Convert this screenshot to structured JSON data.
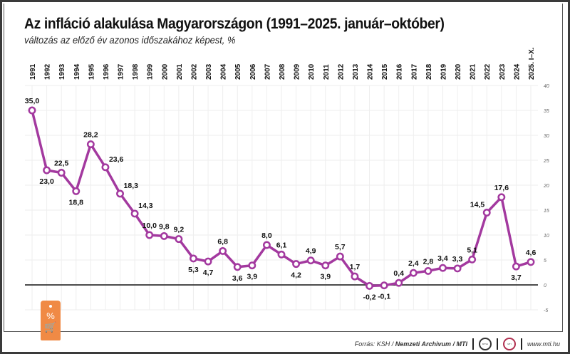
{
  "header": {
    "title": "Az infláció alakulása Magyarországon (1991–2025. január–október)",
    "subtitle": "változás az előző év azonos időszakához képest, %"
  },
  "footer": {
    "source_prefix": "Forrás: KSH / ",
    "source_bold": "Nemzeti Archivum / MTI",
    "website": "www.mti.hu",
    "logos": [
      "MTVA",
      "MTI"
    ]
  },
  "decoration": {
    "tag_symbol": "%",
    "tag_icon": "shopping-cart-icon"
  },
  "colors": {
    "series": "#a3399f",
    "zero_line": "#333333",
    "grid": "#eeeeee"
  },
  "chart_data": {
    "type": "line",
    "title": "Az infláció alakulása Magyarországon (1991–2025. január–október)",
    "subtitle": "változás az előző év azonos időszakához képest, %",
    "categories": [
      "1991",
      "1992",
      "1993",
      "1994",
      "1995",
      "1996",
      "1997",
      "1998",
      "1999",
      "2000",
      "2001",
      "2002",
      "2003",
      "2004",
      "2005",
      "2006",
      "2007",
      "2008",
      "2009",
      "2010",
      "2011",
      "2012",
      "2013",
      "2014",
      "2015",
      "2016",
      "2017",
      "2018",
      "2019",
      "2020",
      "2021",
      "2022",
      "2023",
      "2024",
      "2025. I–X."
    ],
    "values": [
      35.0,
      23.0,
      22.5,
      18.8,
      28.2,
      23.6,
      18.3,
      14.3,
      10.0,
      9.8,
      9.2,
      5.3,
      4.7,
      6.8,
      3.6,
      3.9,
      8.0,
      6.1,
      4.2,
      4.9,
      3.9,
      5.7,
      1.7,
      -0.2,
      -0.1,
      0.4,
      2.4,
      2.8,
      3.4,
      3.3,
      5.1,
      14.5,
      17.6,
      3.7,
      4.6
    ],
    "data_labels": [
      "35,0",
      "23,0",
      "22,5",
      "18,8",
      "28,2",
      "23,6",
      "18,3",
      "14,3",
      "10,0",
      "9,8",
      "9,2",
      "5,3",
      "4,7",
      "6,8",
      "3,6",
      "3,9",
      "8,0",
      "6,1",
      "4,2",
      "4,9",
      "3,9",
      "5,7",
      "1,7",
      "-0,2",
      "-0,1",
      "0,4",
      "2,4",
      "2,8",
      "3,4",
      "3,3",
      "5,1",
      "14,5",
      "17,6",
      "3,7",
      "4,6"
    ],
    "label_positions": [
      "above",
      "below",
      "above",
      "below",
      "above",
      "above-right",
      "above-right",
      "above-right",
      "above",
      "above",
      "above",
      "below",
      "below",
      "above",
      "below",
      "below",
      "above",
      "above",
      "below",
      "above",
      "below",
      "above",
      "above",
      "below",
      "below",
      "above",
      "above",
      "above",
      "above",
      "above",
      "above",
      "above-left",
      "above",
      "below",
      "above"
    ],
    "ylim": [
      -5,
      40
    ],
    "yticks": [
      -5,
      0,
      5,
      10,
      15,
      20,
      25,
      30,
      35,
      40
    ],
    "ytick_position": "right",
    "xaxis_position": "top",
    "grid": true,
    "xlabel": "",
    "ylabel": ""
  }
}
